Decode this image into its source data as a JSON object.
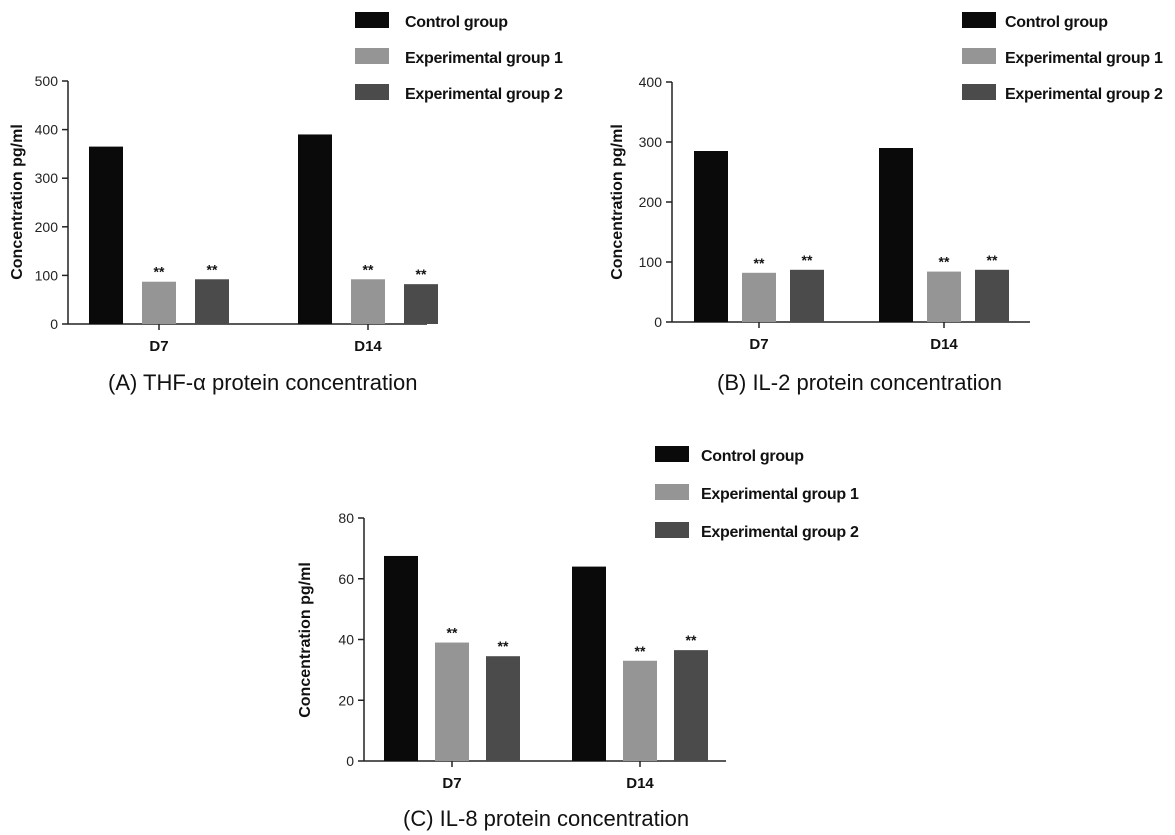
{
  "figure": {
    "charts": [
      {
        "caption": "(A)   THF-α protein concentration"
      },
      {
        "caption": "(B)    IL-2 protein concentration"
      },
      {
        "caption": "(C)      IL-8 protein concentration"
      }
    ]
  },
  "colors": {
    "control": "#0a0a0a",
    "exp1": "#959595",
    "exp2": "#4b4b4b",
    "axis": "#222222"
  },
  "chart_data": [
    {
      "type": "bar",
      "title": "(A)   THF-α protein concentration",
      "ylabel": "Concentration pg/ml",
      "xlabel": "",
      "categories": [
        "D7",
        "D14"
      ],
      "ylim": [
        0,
        500
      ],
      "yticks": [
        0,
        100,
        200,
        300,
        400,
        500
      ],
      "legend": "top-right",
      "series": [
        {
          "name": "Control group",
          "values": [
            365,
            390
          ],
          "markers": [
            "",
            ""
          ]
        },
        {
          "name": "Experimental group 1",
          "values": [
            87,
            92
          ],
          "markers": [
            "**",
            "**"
          ]
        },
        {
          "name": "Experimental group 2",
          "values": [
            92,
            82
          ],
          "markers": [
            "**",
            "**"
          ]
        }
      ]
    },
    {
      "type": "bar",
      "title": "(B)    IL-2 protein concentration",
      "ylabel": "Concentration pg/ml",
      "xlabel": "",
      "categories": [
        "D7",
        "D14"
      ],
      "ylim": [
        0,
        400
      ],
      "yticks": [
        0,
        100,
        200,
        300,
        400
      ],
      "legend": "top-right",
      "series": [
        {
          "name": "Control group",
          "values": [
            285,
            290
          ],
          "markers": [
            "",
            ""
          ]
        },
        {
          "name": "Experimental group 1",
          "values": [
            82,
            84
          ],
          "markers": [
            "**",
            "**"
          ]
        },
        {
          "name": "Experimental group 2",
          "values": [
            87,
            87
          ],
          "markers": [
            "**",
            "**"
          ]
        }
      ]
    },
    {
      "type": "bar",
      "title": "(C)      IL-8 protein concentration",
      "ylabel": "Concentration pg/ml",
      "xlabel": "",
      "categories": [
        "D7",
        "D14"
      ],
      "ylim": [
        0,
        80
      ],
      "yticks": [
        0,
        20,
        40,
        60,
        80
      ],
      "legend": "top-right",
      "series": [
        {
          "name": "Control group",
          "values": [
            67.5,
            64
          ],
          "markers": [
            "",
            ""
          ]
        },
        {
          "name": "Experimental group 1",
          "values": [
            39,
            33
          ],
          "markers": [
            "**",
            "**"
          ]
        },
        {
          "name": "Experimental group 2",
          "values": [
            34.5,
            36.5
          ],
          "markers": [
            "**",
            "**"
          ]
        }
      ]
    }
  ]
}
